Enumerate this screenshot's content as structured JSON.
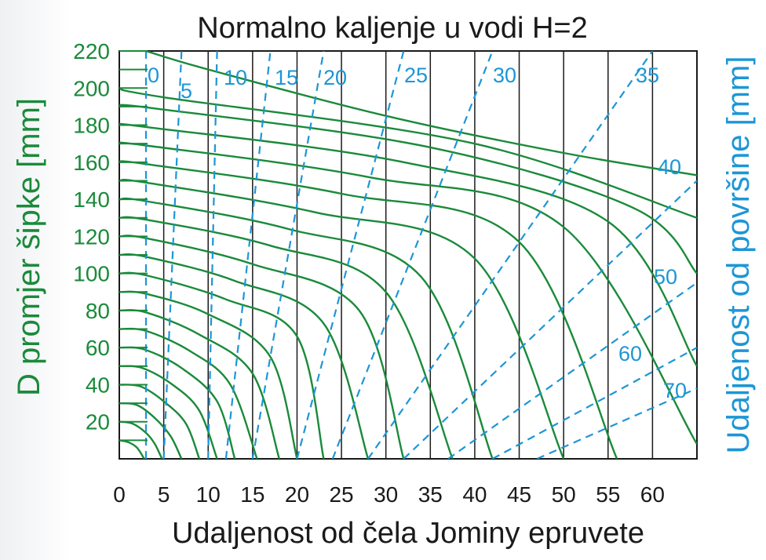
{
  "chart_data": {
    "type": "line",
    "title": "Normalno kaljenje u vodi H=2",
    "xlabel": "Udaljenost od čela Jominy epruvete",
    "ylabel": "D promjer šipke [mm]",
    "ylabel_right": "Udaljenost od površine [mm]",
    "xlim": [
      0,
      65
    ],
    "ylim": [
      0,
      220
    ],
    "x_ticks": [
      "0",
      "5",
      "10",
      "15",
      "20",
      "25",
      "30",
      "35",
      "40",
      "45",
      "50",
      "55",
      "60"
    ],
    "y_ticks": [
      "20",
      "40",
      "60",
      "80",
      "100",
      "120",
      "140",
      "160",
      "180",
      "200",
      "220"
    ],
    "grid": "vertical",
    "colors": {
      "diameter_lines": "#1a8a3a",
      "distance_lines": "#1c96d6",
      "text": "#1a1a1a",
      "grid": "#1a1a1a"
    },
    "diameter_curves": [
      {
        "D": 10,
        "points": [
          [
            0,
            10
          ],
          [
            1,
            9
          ],
          [
            2,
            6
          ],
          [
            2.8,
            0
          ]
        ]
      },
      {
        "D": 20,
        "points": [
          [
            0,
            20
          ],
          [
            1.5,
            19
          ],
          [
            3,
            14
          ],
          [
            4,
            8
          ],
          [
            4.8,
            0
          ]
        ]
      },
      {
        "D": 30,
        "points": [
          [
            0,
            30
          ],
          [
            2,
            29
          ],
          [
            4,
            22
          ],
          [
            5.8,
            12
          ],
          [
            7,
            0
          ]
        ]
      },
      {
        "D": 40,
        "points": [
          [
            0,
            40
          ],
          [
            2.4,
            39
          ],
          [
            5,
            31
          ],
          [
            7.5,
            19
          ],
          [
            9,
            0
          ]
        ]
      },
      {
        "D": 50,
        "points": [
          [
            0,
            50
          ],
          [
            2.6,
            49
          ],
          [
            6,
            40
          ],
          [
            9,
            26
          ],
          [
            11,
            0
          ]
        ]
      },
      {
        "D": 60,
        "points": [
          [
            0,
            60
          ],
          [
            2.8,
            59
          ],
          [
            7,
            49
          ],
          [
            11,
            31
          ],
          [
            13,
            0
          ]
        ]
      },
      {
        "D": 70,
        "points": [
          [
            0,
            70
          ],
          [
            3,
            69
          ],
          [
            8,
            58
          ],
          [
            12.5,
            40
          ],
          [
            15.5,
            0
          ]
        ]
      },
      {
        "D": 80,
        "points": [
          [
            0,
            80
          ],
          [
            3,
            79
          ],
          [
            9,
            67
          ],
          [
            15,
            46
          ],
          [
            18,
            0
          ]
        ]
      },
      {
        "D": 90,
        "points": [
          [
            0,
            90
          ],
          [
            3,
            89
          ],
          [
            10,
            78
          ],
          [
            17,
            55
          ],
          [
            20,
            0
          ]
        ]
      },
      {
        "D": 100,
        "points": [
          [
            0,
            100
          ],
          [
            3,
            99
          ],
          [
            12,
            86
          ],
          [
            20,
            66
          ],
          [
            23,
            0
          ]
        ]
      },
      {
        "D": 110,
        "points": [
          [
            0,
            110
          ],
          [
            3,
            109
          ],
          [
            13,
            96
          ],
          [
            23,
            73
          ],
          [
            28,
            0
          ]
        ]
      },
      {
        "D": 120,
        "points": [
          [
            0,
            120
          ],
          [
            3,
            119
          ],
          [
            15,
            105
          ],
          [
            27,
            80
          ],
          [
            32,
            0
          ]
        ]
      },
      {
        "D": 130,
        "points": [
          [
            0,
            130
          ],
          [
            3,
            129
          ],
          [
            17,
            115
          ],
          [
            30,
            90
          ],
          [
            37.5,
            0
          ]
        ]
      },
      {
        "D": 140,
        "points": [
          [
            0,
            140
          ],
          [
            3,
            139
          ],
          [
            19,
            124
          ],
          [
            34,
            98
          ],
          [
            42,
            0
          ]
        ]
      },
      {
        "D": 150,
        "points": [
          [
            0,
            150
          ],
          [
            3,
            149
          ],
          [
            22,
            133
          ],
          [
            40,
            108
          ],
          [
            50,
            0
          ]
        ]
      },
      {
        "D": 160,
        "points": [
          [
            0,
            160
          ],
          [
            3,
            159
          ],
          [
            25,
            143
          ],
          [
            45,
            117
          ],
          [
            56,
            0
          ]
        ]
      },
      {
        "D": 170,
        "points": [
          [
            0,
            170
          ],
          [
            3,
            169
          ],
          [
            28,
            152
          ],
          [
            50,
            125
          ],
          [
            65,
            8
          ]
        ]
      },
      {
        "D": 180,
        "points": [
          [
            0,
            180
          ],
          [
            3,
            179
          ],
          [
            32,
            160
          ],
          [
            55,
            128
          ],
          [
            65,
            50
          ]
        ]
      },
      {
        "D": 190,
        "points": [
          [
            0,
            190
          ],
          [
            4,
            189
          ],
          [
            35,
            168
          ],
          [
            58,
            135
          ],
          [
            65,
            100
          ]
        ]
      },
      {
        "D": 200,
        "points": [
          [
            0,
            200
          ],
          [
            5,
            195
          ],
          [
            40,
            170
          ],
          [
            65,
            130
          ]
        ]
      },
      {
        "D": 220,
        "points": [
          [
            3,
            220
          ],
          [
            10,
            210
          ],
          [
            30,
            185
          ],
          [
            50,
            165
          ],
          [
            65,
            153
          ]
        ]
      }
    ],
    "distance_curves": [
      {
        "label": "0",
        "points": [
          [
            3,
            0
          ],
          [
            3,
            220
          ]
        ]
      },
      {
        "label": "5",
        "points": [
          [
            5,
            0
          ],
          [
            7,
            220
          ]
        ]
      },
      {
        "label": "10",
        "points": [
          [
            10,
            0
          ],
          [
            11,
            220
          ]
        ]
      },
      {
        "label": "15",
        "points": [
          [
            12,
            0
          ],
          [
            17,
            220
          ]
        ]
      },
      {
        "label": "20",
        "points": [
          [
            15,
            0
          ],
          [
            23,
            220
          ]
        ]
      },
      {
        "label": "25",
        "points": [
          [
            20,
            0
          ],
          [
            32,
            220
          ]
        ]
      },
      {
        "label": "30",
        "points": [
          [
            24,
            0
          ],
          [
            42,
            220
          ]
        ]
      },
      {
        "label": "35",
        "points": [
          [
            28,
            0
          ],
          [
            60,
            220
          ]
        ]
      },
      {
        "label": "40",
        "points": [
          [
            32,
            0
          ],
          [
            65,
            150
          ]
        ]
      },
      {
        "label": "50",
        "points": [
          [
            37,
            0
          ],
          [
            65,
            95
          ]
        ]
      },
      {
        "label": "60",
        "points": [
          [
            42,
            0
          ],
          [
            65,
            60
          ]
        ]
      },
      {
        "label": "70",
        "points": [
          [
            47,
            0
          ],
          [
            65,
            38
          ]
        ]
      }
    ],
    "distance_labels": [
      "0",
      "5",
      "10",
      "15",
      "20",
      "25",
      "30",
      "35",
      "40",
      "50",
      "60",
      "70"
    ]
  }
}
